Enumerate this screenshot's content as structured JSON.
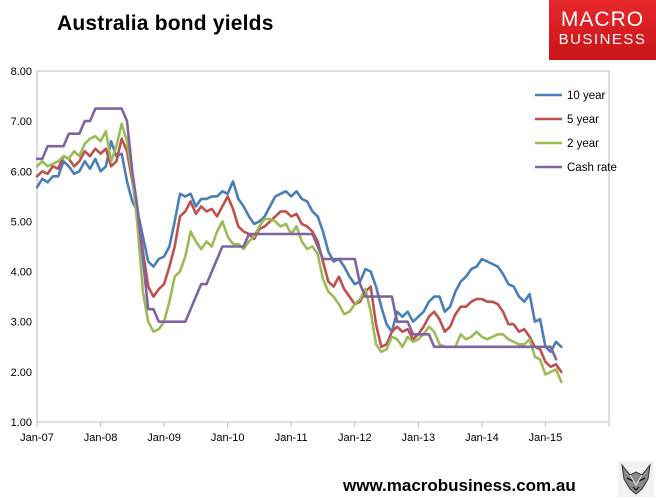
{
  "header": {
    "title": "Australia bond yields"
  },
  "logo": {
    "line1": "MACRO",
    "line2": "BUSINESS"
  },
  "footer": {
    "url": "www.macrobusiness.com.au"
  },
  "icons": {
    "footer_logo": "fox-head-icon"
  },
  "chart_data": {
    "type": "line",
    "title": "Australia bond yields",
    "xlabel": "",
    "ylabel": "",
    "ylim": [
      1.0,
      8.0
    ],
    "xlim": [
      0,
      108
    ],
    "yticks": [
      "1.00",
      "2.00",
      "3.00",
      "4.00",
      "5.00",
      "6.00",
      "7.00",
      "8.00"
    ],
    "xticks": [
      {
        "label": "Jan-07",
        "pos": 0
      },
      {
        "label": "Jan-08",
        "pos": 12
      },
      {
        "label": "Jan-09",
        "pos": 24
      },
      {
        "label": "Jan-10",
        "pos": 36
      },
      {
        "label": "Jan-11",
        "pos": 48
      },
      {
        "label": "Jan-12",
        "pos": 60
      },
      {
        "label": "Jan-13",
        "pos": 72
      },
      {
        "label": "Jan-14",
        "pos": 84
      },
      {
        "label": "Jan-15",
        "pos": 96
      }
    ],
    "grid": false,
    "legend": "top-right",
    "series": [
      {
        "name": "10 year",
        "color": "#4a7ebb",
        "values": [
          5.68,
          5.85,
          5.78,
          5.9,
          5.9,
          6.2,
          6.1,
          5.95,
          6.0,
          6.2,
          6.05,
          6.25,
          6.0,
          6.1,
          6.6,
          6.3,
          6.35,
          5.8,
          5.4,
          5.2,
          4.7,
          4.2,
          4.1,
          4.25,
          4.3,
          4.5,
          5.0,
          5.55,
          5.5,
          5.55,
          5.3,
          5.45,
          5.45,
          5.5,
          5.5,
          5.6,
          5.55,
          5.8,
          5.45,
          5.3,
          5.1,
          4.95,
          5.0,
          5.1,
          5.3,
          5.5,
          5.55,
          5.6,
          5.5,
          5.6,
          5.45,
          5.4,
          5.2,
          5.1,
          4.8,
          4.4,
          4.2,
          4.25,
          4.1,
          3.9,
          3.75,
          3.8,
          4.05,
          4.0,
          3.7,
          3.3,
          2.95,
          2.8,
          3.2,
          3.1,
          3.2,
          3.0,
          3.1,
          3.2,
          3.4,
          3.5,
          3.5,
          3.2,
          3.3,
          3.6,
          3.8,
          3.9,
          4.05,
          4.1,
          4.25,
          4.2,
          4.15,
          4.1,
          3.95,
          3.75,
          3.7,
          3.5,
          3.4,
          3.55,
          3.0,
          3.05,
          2.5,
          2.4,
          2.6,
          2.5
        ]
      },
      {
        "name": "5 year",
        "color": "#c0504d",
        "values": [
          5.9,
          6.0,
          5.95,
          6.1,
          6.05,
          6.3,
          6.25,
          6.1,
          6.2,
          6.4,
          6.3,
          6.45,
          6.35,
          6.45,
          6.1,
          6.2,
          6.65,
          6.4,
          5.8,
          5.2,
          4.4,
          3.7,
          3.5,
          3.65,
          3.75,
          4.1,
          4.5,
          5.1,
          5.2,
          5.4,
          5.15,
          5.3,
          5.2,
          5.25,
          5.1,
          5.3,
          5.5,
          5.25,
          4.9,
          4.8,
          4.75,
          4.65,
          4.85,
          4.9,
          5.0,
          5.1,
          5.2,
          5.2,
          5.1,
          5.15,
          4.95,
          4.9,
          4.8,
          4.6,
          4.2,
          3.8,
          3.7,
          3.9,
          3.65,
          3.5,
          3.35,
          3.4,
          3.6,
          3.7,
          2.95,
          2.5,
          2.55,
          2.8,
          2.9,
          2.8,
          2.85,
          2.65,
          2.75,
          2.9,
          3.1,
          3.2,
          3.05,
          2.8,
          2.9,
          3.15,
          3.3,
          3.3,
          3.4,
          3.45,
          3.45,
          3.4,
          3.4,
          3.35,
          3.2,
          2.95,
          2.95,
          2.8,
          2.85,
          2.7,
          2.5,
          2.45,
          2.2,
          2.1,
          2.15,
          2.0
        ]
      },
      {
        "name": "2 year",
        "color": "#9bbb59",
        "values": [
          6.1,
          6.2,
          6.1,
          6.15,
          6.2,
          6.3,
          6.25,
          6.4,
          6.3,
          6.55,
          6.65,
          6.7,
          6.6,
          6.8,
          6.2,
          6.5,
          6.95,
          6.6,
          5.9,
          4.9,
          3.6,
          3.0,
          2.8,
          2.85,
          3.0,
          3.4,
          3.9,
          4.0,
          4.3,
          4.8,
          4.6,
          4.45,
          4.6,
          4.5,
          4.8,
          5.0,
          4.7,
          4.55,
          4.55,
          4.45,
          4.6,
          4.7,
          4.9,
          5.05,
          5.05,
          5.0,
          4.9,
          4.95,
          4.75,
          4.9,
          4.6,
          4.45,
          4.5,
          4.35,
          3.85,
          3.6,
          3.5,
          3.35,
          3.15,
          3.2,
          3.35,
          3.45,
          3.65,
          3.2,
          2.55,
          2.4,
          2.45,
          2.7,
          2.65,
          2.5,
          2.7,
          2.6,
          2.65,
          2.75,
          2.9,
          2.8,
          2.55,
          2.5,
          2.5,
          2.5,
          2.75,
          2.65,
          2.7,
          2.8,
          2.7,
          2.65,
          2.7,
          2.75,
          2.75,
          2.65,
          2.6,
          2.55,
          2.55,
          2.65,
          2.3,
          2.25,
          1.95,
          2.0,
          2.05,
          1.8
        ]
      },
      {
        "name": "Cash rate",
        "color": "#8064a2",
        "values": [
          6.25,
          6.25,
          6.5,
          6.5,
          6.5,
          6.5,
          6.75,
          6.75,
          6.75,
          7.0,
          7.0,
          7.25,
          7.25,
          7.25,
          7.25,
          7.25,
          7.25,
          7.0,
          6.0,
          5.25,
          4.25,
          3.25,
          3.25,
          3.0,
          3.0,
          3.0,
          3.0,
          3.0,
          3.0,
          3.25,
          3.5,
          3.75,
          3.75,
          4.0,
          4.25,
          4.5,
          4.5,
          4.5,
          4.5,
          4.5,
          4.75,
          4.75,
          4.75,
          4.75,
          4.75,
          4.75,
          4.75,
          4.75,
          4.75,
          4.75,
          4.75,
          4.75,
          4.75,
          4.5,
          4.25,
          4.25,
          4.25,
          4.25,
          4.25,
          4.25,
          4.25,
          3.75,
          3.5,
          3.5,
          3.5,
          3.5,
          3.5,
          3.5,
          3.0,
          3.0,
          3.0,
          2.75,
          2.75,
          2.75,
          2.75,
          2.5,
          2.5,
          2.5,
          2.5,
          2.5,
          2.5,
          2.5,
          2.5,
          2.5,
          2.5,
          2.5,
          2.5,
          2.5,
          2.5,
          2.5,
          2.5,
          2.5,
          2.5,
          2.5,
          2.5,
          2.5,
          2.5,
          2.5,
          2.25
        ]
      }
    ]
  }
}
